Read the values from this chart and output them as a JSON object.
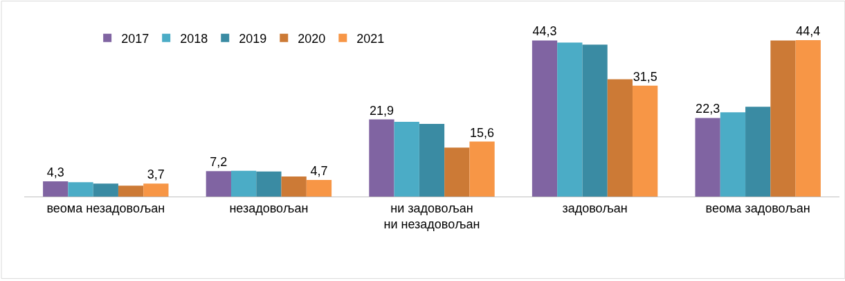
{
  "chart_data": {
    "type": "bar",
    "categories": [
      "веома незадовољан",
      "незадовољан",
      "ни задовољан ни незадовољан",
      "задовољан",
      "веома задовољан"
    ],
    "series": [
      {
        "name": "2017",
        "color": "#8064a2",
        "values": [
          4.3,
          7.2,
          21.9,
          44.3,
          22.3
        ],
        "value_labels": [
          "4,3",
          "7,2",
          "21,9",
          "44,3",
          "22,3"
        ]
      },
      {
        "name": "2018",
        "color": "#4bacc6",
        "values": [
          4.1,
          7.3,
          21.2,
          43.7,
          23.9
        ]
      },
      {
        "name": "2019",
        "color": "#3a8ba3",
        "values": [
          3.7,
          7.1,
          20.6,
          43.1,
          25.5
        ]
      },
      {
        "name": "2020",
        "color": "#cc7a36",
        "values": [
          3.1,
          5.7,
          13.9,
          33.3,
          44.3
        ]
      },
      {
        "name": "2021",
        "color": "#f79646",
        "values": [
          3.7,
          4.7,
          15.6,
          31.5,
          44.4
        ],
        "value_labels": [
          "3,7",
          "4,7",
          "15,6",
          "31,5",
          "44,4"
        ]
      }
    ],
    "legend": "top"
  }
}
